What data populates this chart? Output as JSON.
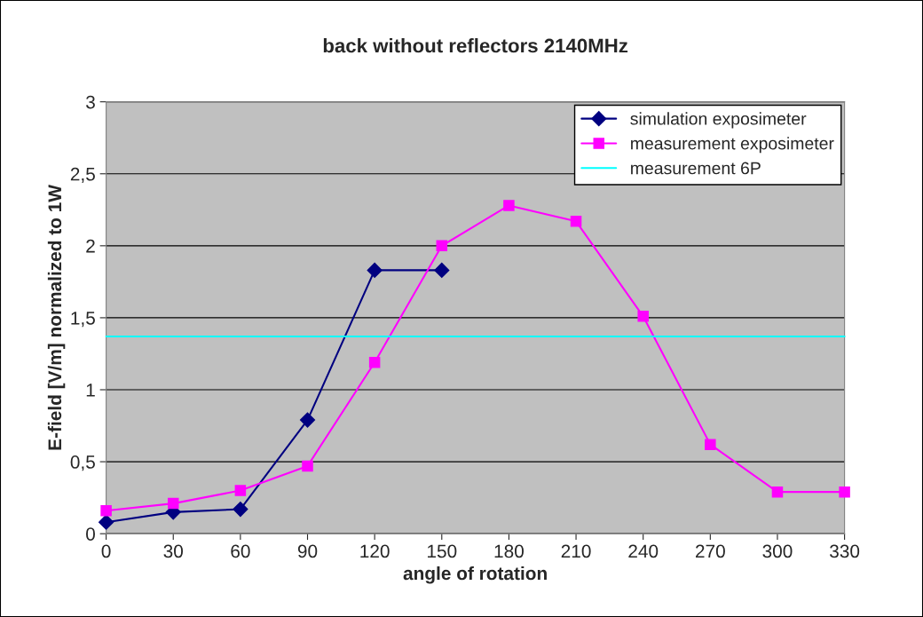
{
  "chart_data": {
    "type": "line",
    "title": "back without reflectors 2140MHz",
    "xlabel": "angle of rotation",
    "ylabel": "E-field [V/m] normalized to 1W",
    "categories": [
      "0",
      "30",
      "60",
      "90",
      "120",
      "150",
      "180",
      "210",
      "240",
      "270",
      "300",
      "330"
    ],
    "series": [
      {
        "name": "simulation exposimeter",
        "color": "#000080",
        "marker": "diamond",
        "values": [
          0.08,
          0.15,
          0.17,
          0.79,
          1.83,
          1.83,
          null,
          null,
          null,
          null,
          null,
          null
        ]
      },
      {
        "name": "measurement exposimeter",
        "color": "#ff00ff",
        "marker": "square",
        "values": [
          0.16,
          0.21,
          0.3,
          0.47,
          1.19,
          2.0,
          2.28,
          2.17,
          1.51,
          0.62,
          0.29,
          0.29
        ]
      },
      {
        "name": "measurement 6P",
        "color": "#00ffff",
        "marker": "none",
        "values": [
          1.37,
          1.37,
          1.37,
          1.37,
          1.37,
          1.37,
          1.37,
          1.37,
          1.37,
          1.37,
          1.37,
          1.37
        ]
      }
    ],
    "ylim": [
      0,
      3
    ],
    "yticks": [
      0,
      {
        "value": 0.5,
        "label": "0,5"
      },
      1,
      {
        "value": 1.5,
        "label": "1,5"
      },
      2,
      {
        "value": 2.5,
        "label": "2,5"
      },
      3
    ],
    "grid": "y",
    "legend": "top right"
  }
}
